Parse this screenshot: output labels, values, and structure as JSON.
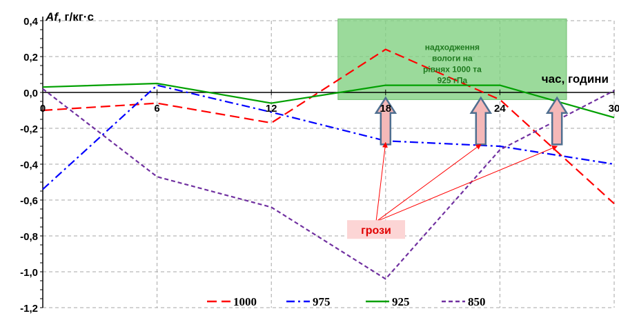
{
  "chart_data": {
    "type": "line",
    "ylabel": "Af, г/кг·с",
    "ylabel_italic": "Af",
    "ylabel_rest": ", г/кг·с",
    "xlabel": "час, години",
    "x": [
      0,
      6,
      12,
      18,
      24,
      30
    ],
    "xlim": [
      0,
      30
    ],
    "ylim": [
      -1.2,
      0.4
    ],
    "x_ticks": [
      "0",
      "6",
      "12",
      "18",
      "24",
      "30"
    ],
    "y_ticks": [
      "0,4",
      "0,2",
      "0,0",
      "-0,2",
      "-0,4",
      "-0,6",
      "-0,8",
      "-1,0",
      "-1,2"
    ],
    "grid": true,
    "legend_position": "bottom",
    "series": [
      {
        "name": "1000",
        "color": "#ff0000",
        "style": "dashed",
        "values": [
          [
            0,
            -0.1
          ],
          [
            6,
            -0.06
          ],
          [
            12,
            -0.17
          ],
          [
            18,
            0.24
          ],
          [
            24,
            -0.04
          ],
          [
            30,
            -0.62
          ]
        ]
      },
      {
        "name": "975",
        "color": "#0000ff",
        "style": "dashdot",
        "values": [
          [
            0,
            -0.54
          ],
          [
            6,
            0.04
          ],
          [
            12,
            -0.11
          ],
          [
            18,
            -0.27
          ],
          [
            24,
            -0.3
          ],
          [
            30,
            -0.4
          ]
        ]
      },
      {
        "name": "925",
        "color": "#00a000",
        "style": "solid",
        "values": [
          [
            0,
            0.03
          ],
          [
            6,
            0.05
          ],
          [
            12,
            -0.06
          ],
          [
            18,
            0.04
          ],
          [
            24,
            0.04
          ],
          [
            30,
            -0.14
          ]
        ]
      },
      {
        "name": "850",
        "color": "#7030a0",
        "style": "dotted",
        "values": [
          [
            0,
            0.02
          ],
          [
            6,
            -0.47
          ],
          [
            12,
            -0.64
          ],
          [
            18,
            -1.04
          ],
          [
            24,
            -0.32
          ],
          [
            30,
            0.01
          ]
        ]
      }
    ],
    "annotations": {
      "moisture": {
        "lines": [
          "надходження",
          "вологи на",
          "рівнях 1000 та",
          "925 гПа"
        ],
        "x_range": [
          15.5,
          27.5
        ],
        "y_range": [
          -0.04,
          0.41
        ],
        "fill": "#7fcf7f",
        "text_color": "#1f7a1f"
      },
      "storms": {
        "label": "грози",
        "label_at": [
          17.5,
          -0.77
        ],
        "label_color": "#e00000",
        "label_bg": "#fcd5d5",
        "arrow_color": "#ff0000",
        "from": [
          17.5,
          -0.72
        ],
        "targets": [
          [
            18,
            -0.28
          ],
          [
            23,
            -0.29
          ],
          [
            27,
            -0.3
          ]
        ]
      },
      "up_arrows": {
        "x": [
          18,
          23,
          27
        ],
        "y_bottom": -0.29,
        "y_top": -0.03,
        "fill": "#f4b8b8",
        "stroke": "#4f6f90"
      }
    }
  }
}
